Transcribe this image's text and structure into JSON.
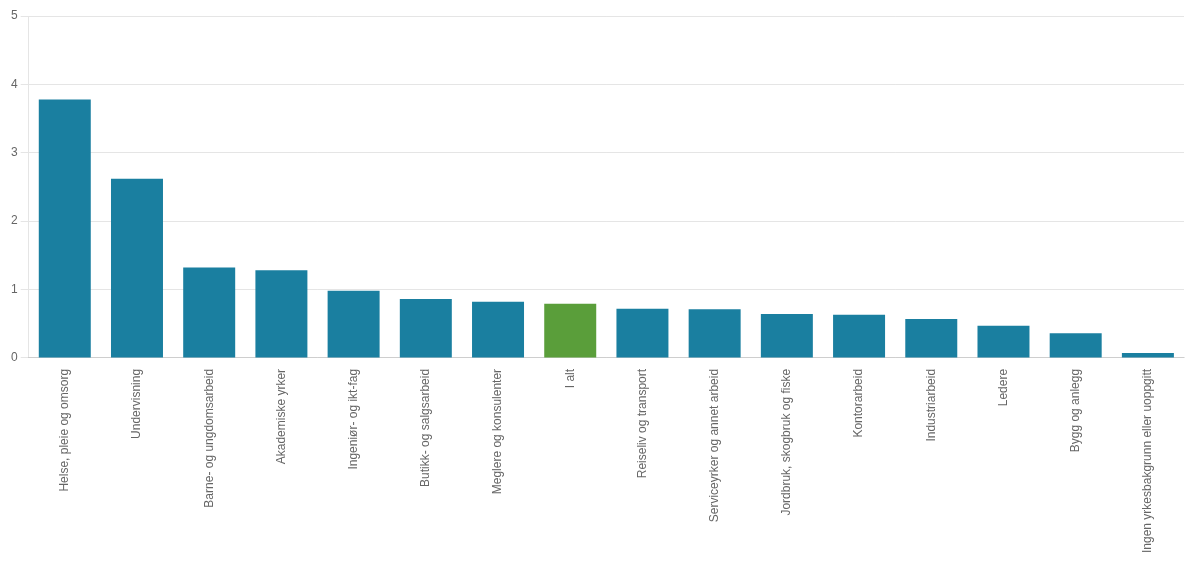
{
  "chart_data": {
    "type": "bar",
    "categories": [
      "Helse, pleie og omsorg",
      "Undervisning",
      "Barne- og ungdomsarbeid",
      "Akademiske yrker",
      "Ingeniør- og ikt-fag",
      "Butikk- og salgsarbeid",
      "Meglere og konsulenter",
      "I alt",
      "Reiseliv og transport",
      "Serviceyrker og annet arbeid",
      "Jordbruk, skogbruk og fiske",
      "Kontorarbeid",
      "Industriarbeid",
      "Ledere",
      "Bygg og anlegg",
      "Ingen yrkesbakgrunn eller uoppgitt"
    ],
    "values": [
      3.78,
      2.62,
      1.32,
      1.28,
      0.98,
      0.86,
      0.82,
      0.79,
      0.72,
      0.71,
      0.64,
      0.63,
      0.57,
      0.47,
      0.36,
      0.07
    ],
    "colors": [
      "#1a7fa0",
      "#1a7fa0",
      "#1a7fa0",
      "#1a7fa0",
      "#1a7fa0",
      "#1a7fa0",
      "#1a7fa0",
      "#5a9e3a",
      "#1a7fa0",
      "#1a7fa0",
      "#1a7fa0",
      "#1a7fa0",
      "#1a7fa0",
      "#1a7fa0",
      "#1a7fa0",
      "#1a7fa0"
    ],
    "ylim": [
      0,
      5
    ],
    "yticks": [
      0,
      1,
      2,
      3,
      4,
      5
    ],
    "grid": true
  }
}
